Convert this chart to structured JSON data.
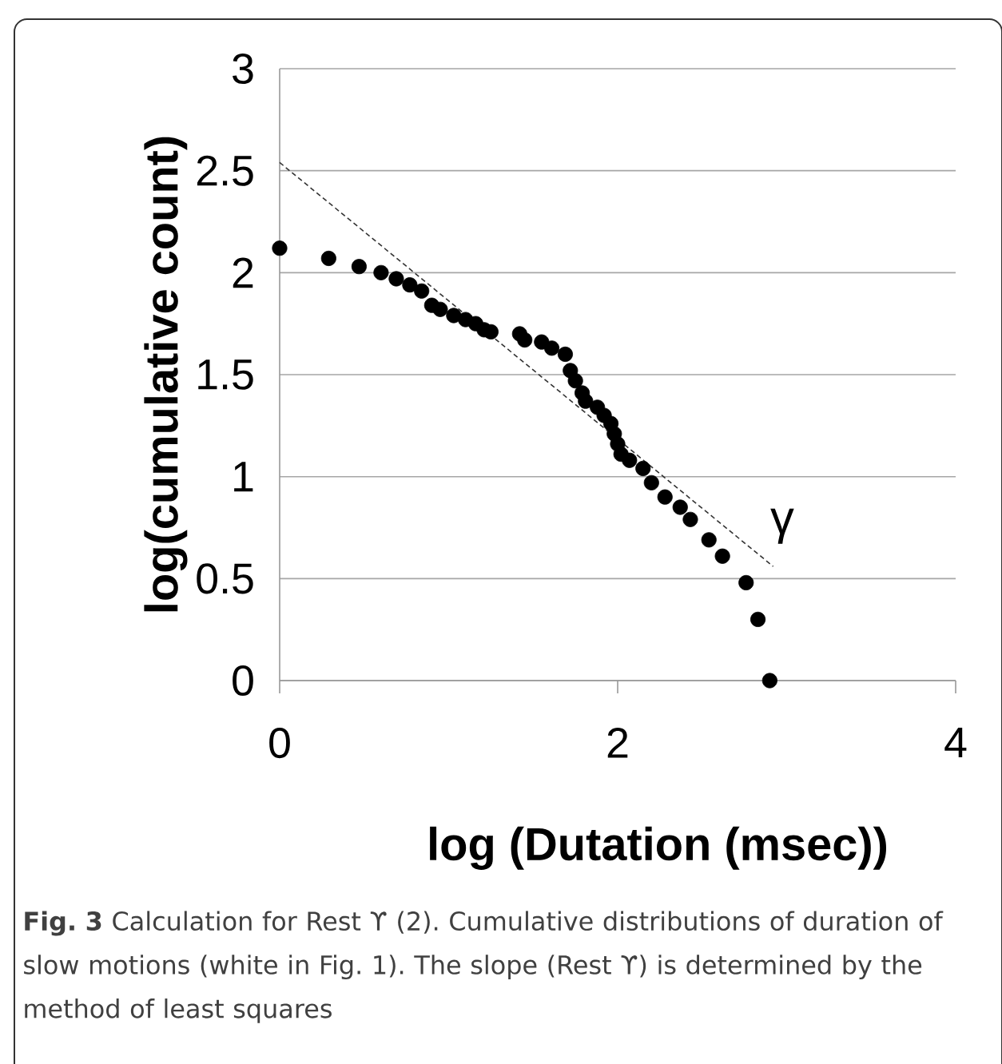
{
  "chart_data": {
    "type": "scatter",
    "xlabel": "log (Dutation (msec))",
    "ylabel": "log(cumulative count)",
    "xlim": [
      0,
      4
    ],
    "ylim": [
      0,
      3
    ],
    "xticks": [
      0,
      2,
      4
    ],
    "yticks": [
      0,
      0.5,
      1,
      1.5,
      2,
      2.5,
      3
    ],
    "grid": "y",
    "marker": "circle",
    "series": [
      {
        "color": "#000000",
        "x": [
          0,
          0.29,
          0.47,
          0.6,
          0.69,
          0.77,
          0.84,
          0.9,
          0.95,
          1.03,
          1.1,
          1.16,
          1.21,
          1.25,
          1.42,
          1.45,
          1.55,
          1.61,
          1.69,
          1.72,
          1.75,
          1.79,
          1.81,
          1.88,
          1.92,
          1.96,
          1.98,
          2.0,
          2.02,
          2.07,
          2.15,
          2.2,
          2.28,
          2.37,
          2.43,
          2.54,
          2.62,
          2.76,
          2.83,
          2.9
        ],
        "values": [
          2.12,
          2.07,
          2.03,
          2.0,
          1.97,
          1.94,
          1.91,
          1.84,
          1.82,
          1.79,
          1.77,
          1.75,
          1.72,
          1.71,
          1.7,
          1.67,
          1.66,
          1.63,
          1.6,
          1.52,
          1.47,
          1.41,
          1.37,
          1.34,
          1.3,
          1.26,
          1.21,
          1.16,
          1.11,
          1.08,
          1.04,
          0.97,
          0.9,
          0.85,
          0.79,
          0.69,
          0.61,
          0.48,
          0.3,
          0.0
        ]
      },
      {
        "type": "line",
        "color": "#333333",
        "line_style": "dashed",
        "marker": "none",
        "x": [
          0,
          2.92
        ],
        "values": [
          2.54,
          0.56
        ]
      }
    ],
    "annotations": [
      "γ",
      "**Fig. 3** Calculation for Rest ϒ (2). Cumulative distributions of duration of slow motions (white in Fig. 1). The slope (Rest ϒ) is determined by the method of least squares"
    ]
  }
}
